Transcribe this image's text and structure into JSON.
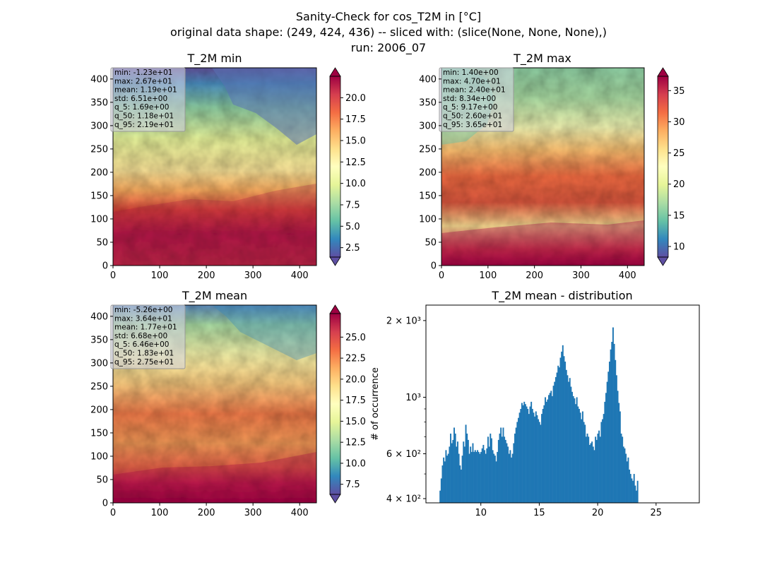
{
  "figure": {
    "suptitle": [
      "Sanity-Check for cos_T2M in [°C]",
      "original data shape: (249, 424, 436) -- sliced with: (slice(None, None, None),)",
      "run: 2006_07"
    ]
  },
  "colors": {
    "histogram": "#1f77b4",
    "colormap": "Spectral_r",
    "colormap_stops": [
      "#5e4fa2",
      "#3288bd",
      "#66c2a5",
      "#abdda4",
      "#e6f598",
      "#ffffbf",
      "#fee08b",
      "#fdae61",
      "#f46d43",
      "#d53e4f",
      "#9e0142"
    ]
  },
  "panels": [
    {
      "title": "T_2M min",
      "map_x_range": [
        0,
        436
      ],
      "map_y_range": [
        0,
        424
      ],
      "x_ticks": [
        0,
        100,
        200,
        300,
        400
      ],
      "y_ticks": [
        0,
        50,
        100,
        150,
        200,
        250,
        300,
        350,
        400
      ],
      "cbar_range": [
        1.4,
        22.5
      ],
      "cbar_ticks": [
        "2.5",
        "5.0",
        "7.5",
        "10.0",
        "12.5",
        "15.0",
        "17.5",
        "20.0"
      ],
      "stats": [
        "min: -1.23e+01",
        "max: 2.67e+01",
        "mean: 1.19e+01",
        "std: 6.51e+00",
        "q_5: 1.69e+00",
        "q_50: 1.18e+01",
        "q_95: 2.19e+01"
      ]
    },
    {
      "title": "T_2M max",
      "map_x_range": [
        0,
        436
      ],
      "map_y_range": [
        0,
        424
      ],
      "x_ticks": [
        0,
        100,
        200,
        300,
        400
      ],
      "y_ticks": [
        0,
        50,
        100,
        150,
        200,
        250,
        300,
        350,
        400
      ],
      "cbar_range": [
        8.3,
        37.3
      ],
      "cbar_ticks": [
        "10",
        "15",
        "20",
        "25",
        "30",
        "35"
      ],
      "stats": [
        "min: 1.40e+00",
        "max: 4.70e+01",
        "mean: 2.40e+01",
        "std: 8.34e+00",
        "q_5: 9.17e+00",
        "q_50: 2.60e+01",
        "q_95: 3.65e+01"
      ]
    },
    {
      "title": "T_2M mean",
      "map_x_range": [
        0,
        436
      ],
      "map_y_range": [
        0,
        424
      ],
      "x_ticks": [
        0,
        100,
        200,
        300,
        400
      ],
      "y_ticks": [
        0,
        50,
        100,
        150,
        200,
        250,
        300,
        350,
        400
      ],
      "cbar_range": [
        6.3,
        27.8
      ],
      "cbar_ticks": [
        "7.5",
        "10.0",
        "12.5",
        "15.0",
        "17.5",
        "20.0",
        "22.5",
        "25.0"
      ],
      "stats": [
        "min: -5.26e+00",
        "max: 3.64e+01",
        "mean: 1.77e+01",
        "std: 6.68e+00",
        "q_5: 6.46e+00",
        "q_50: 1.83e+01",
        "q_95: 2.75e+01"
      ]
    }
  ],
  "chart_data": {
    "type": "bar",
    "title": "T_2M mean - distribution",
    "ylabel": "# of occurrence",
    "xlabel": "",
    "yscale": "log",
    "xlim": [
      5.3,
      28.7
    ],
    "ylim": [
      385,
      2300
    ],
    "x_ticks": [
      10,
      15,
      20,
      25
    ],
    "y_major_ticks": [
      {
        "value": 400,
        "label": "4 × 10²"
      },
      {
        "value": 600,
        "label": "6 × 10²"
      },
      {
        "value": 1000,
        "label": "10³"
      },
      {
        "value": 2000,
        "label": "2 × 10³"
      }
    ],
    "y_minor_ticks": [
      500,
      700,
      800,
      900
    ],
    "x_start": 6.46,
    "bin_width": 0.1,
    "series": [
      {
        "values": [
          430,
          480,
          540,
          580,
          560,
          620,
          590,
          600,
          640,
          720,
          660,
          680,
          760,
          720,
          640,
          670,
          600,
          540,
          520,
          590,
          670,
          640,
          780,
          720,
          680,
          600,
          640,
          610,
          660,
          610,
          620,
          610,
          620,
          610,
          600,
          610,
          630,
          650,
          620,
          600,
          630,
          700,
          640,
          720,
          690,
          620,
          600,
          590,
          560,
          610,
          680,
          720,
          760,
          700,
          760,
          700,
          680,
          660,
          640,
          600,
          620,
          580,
          600,
          660,
          720,
          760,
          800,
          830,
          870,
          900,
          950,
          930,
          960,
          940,
          920,
          900,
          860,
          920,
          960,
          900,
          870,
          840,
          880,
          850,
          820,
          800,
          780,
          860,
          900,
          930,
          1000,
          960,
          980,
          1020,
          1040,
          1060,
          1010,
          1110,
          1150,
          1200,
          1250,
          1330,
          1310,
          1430,
          1510,
          1600,
          1450,
          1380,
          1280,
          1220,
          1150,
          1190,
          1100,
          1050,
          1010,
          990,
          940,
          1000,
          920,
          900,
          870,
          820,
          880,
          800,
          780,
          700,
          720,
          700,
          650,
          660,
          670,
          640,
          620,
          700,
          680,
          720,
          740,
          700,
          800,
          820,
          860,
          960,
          1040,
          1150,
          1260,
          1380,
          1540,
          1650,
          1880,
          1620,
          1400,
          1220,
          1060,
          950,
          880,
          720,
          700,
          640,
          630,
          600,
          560,
          580,
          520,
          500,
          480,
          470,
          500,
          450,
          430,
          470
        ]
      }
    ]
  }
}
